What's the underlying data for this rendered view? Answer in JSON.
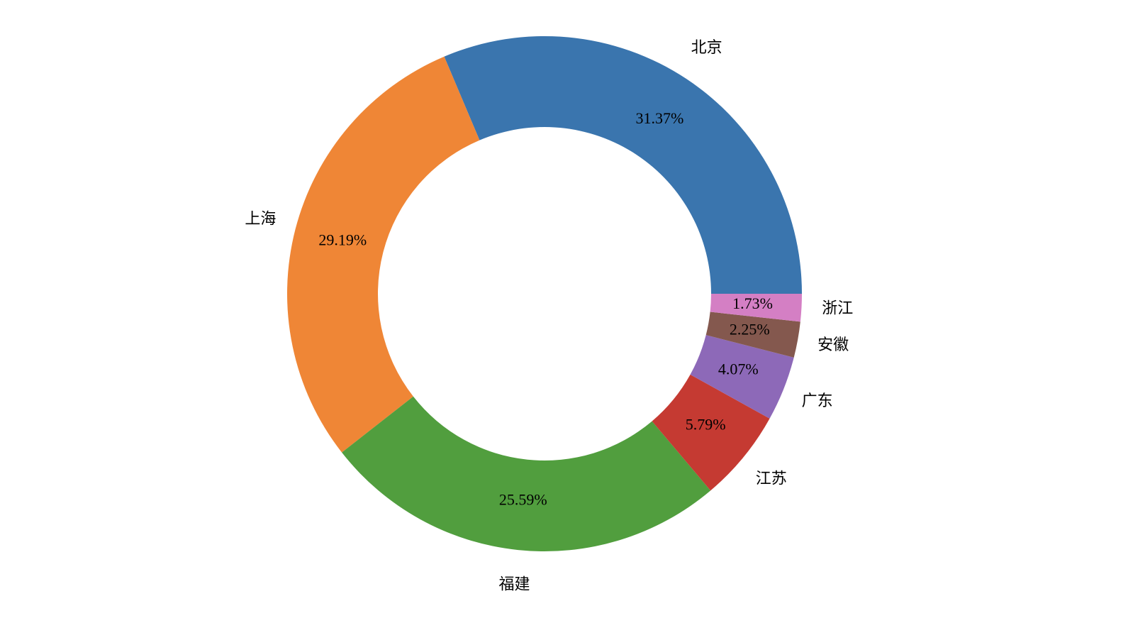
{
  "chart_data": {
    "type": "pie",
    "categories": [
      "北京",
      "上海",
      "福建",
      "江苏",
      "广东",
      "安徽",
      "浙江"
    ],
    "values": [
      31.37,
      29.19,
      25.59,
      5.79,
      4.07,
      2.25,
      1.73
    ],
    "value_labels": [
      "31.37%",
      "29.19%",
      "25.59%",
      "5.79%",
      "4.07%",
      "2.25%",
      "1.73%"
    ],
    "colors": [
      "#3a75ae",
      "#ef8636",
      "#519e3e",
      "#c53a32",
      "#8d69b8",
      "#84584e",
      "#d47fc4"
    ]
  }
}
